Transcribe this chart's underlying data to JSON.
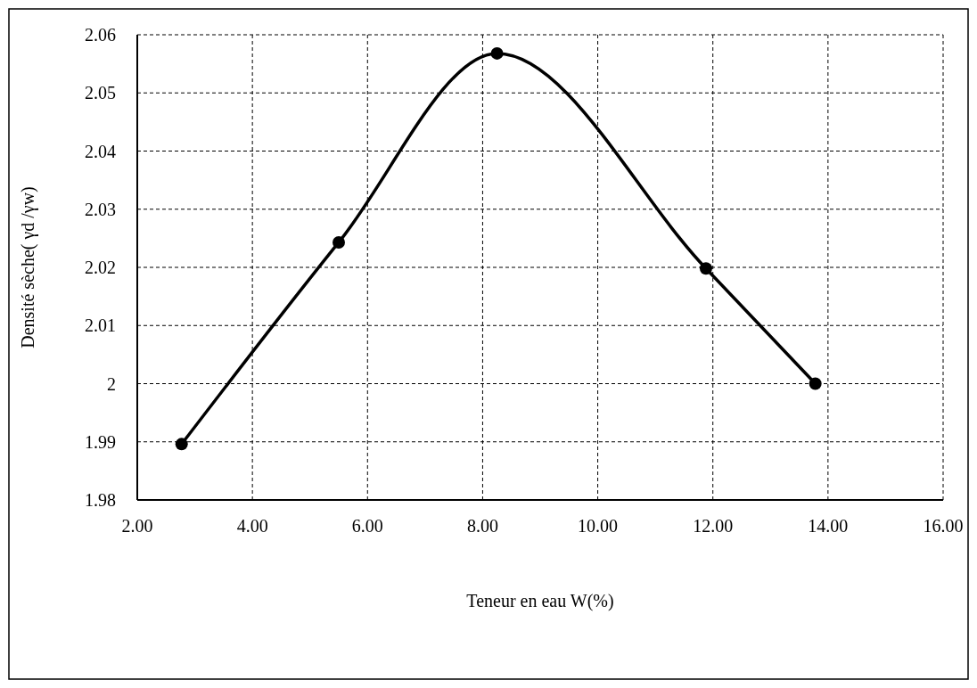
{
  "chart_data": {
    "type": "line",
    "xlabel": "Teneur en eau W(%)",
    "ylabel": "Densité sèche( γd /γw)",
    "x": [
      2.77,
      5.5,
      8.25,
      11.88,
      13.78
    ],
    "series": [
      {
        "color": "#000000",
        "values": [
          1.9896,
          2.0243,
          2.0568,
          2.0198,
          2.0
        ]
      }
    ],
    "xlim": [
      2,
      16
    ],
    "xticks": [
      {
        "value": 2,
        "label": "2.00"
      },
      {
        "value": 4,
        "label": "4.00"
      },
      {
        "value": 6,
        "label": "6.00"
      },
      {
        "value": 8,
        "label": "8.00"
      },
      {
        "value": 10,
        "label": "10.00"
      },
      {
        "value": 12,
        "label": "12.00"
      },
      {
        "value": 14,
        "label": "14.00"
      },
      {
        "value": 16,
        "label": "16.00"
      }
    ],
    "ylim": [
      1.98,
      2.06
    ],
    "yticks": [
      1.98,
      1.99,
      2,
      2.01,
      2.02,
      2.03,
      2.04,
      2.05,
      2.06
    ],
    "grid": true,
    "marker": "circle",
    "line_style": "solid"
  }
}
